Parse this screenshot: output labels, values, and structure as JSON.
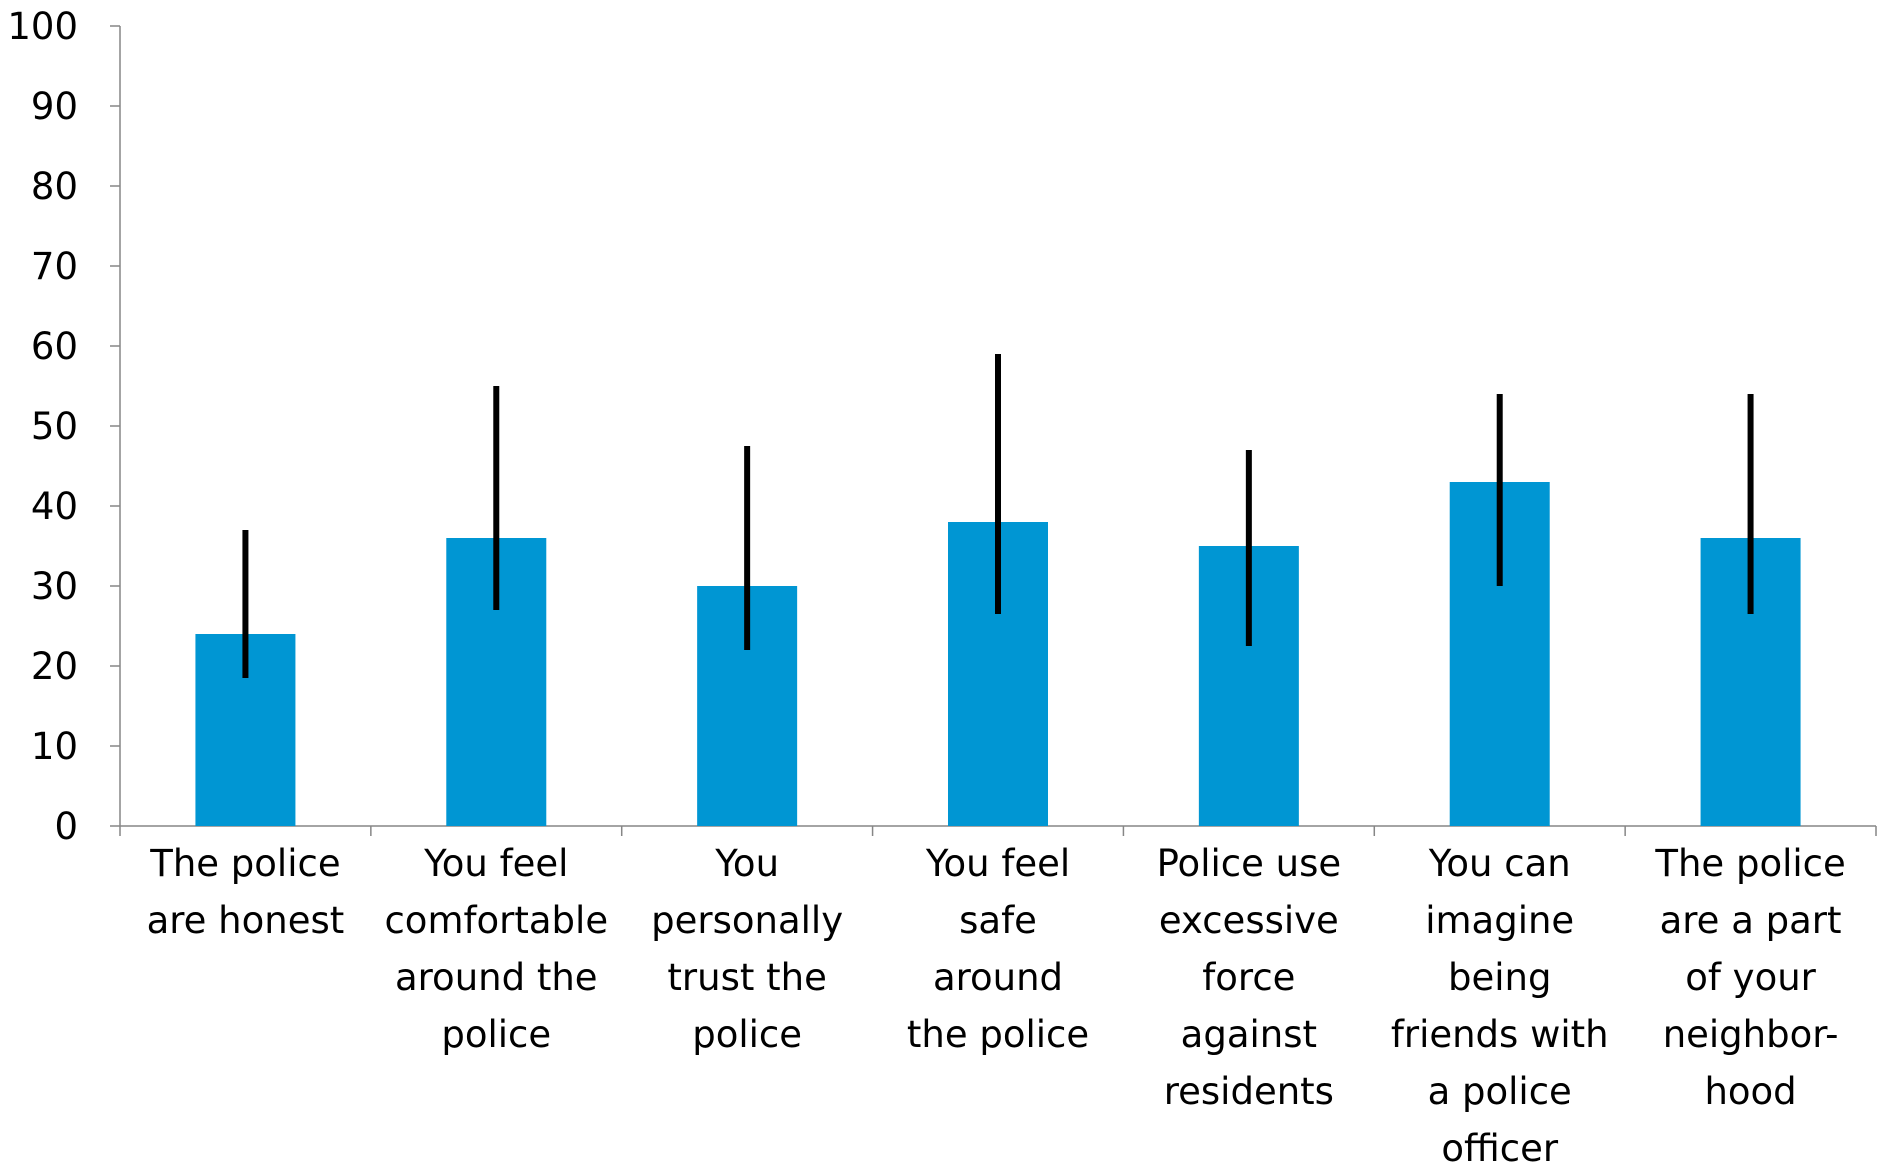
{
  "chart_data": {
    "type": "bar",
    "categories": [
      "The police\nare honest",
      "You feel\ncomfortable\naround the\npolice",
      "You\npersonally\ntrust the\npolice",
      "You feel\nsafe\naround\nthe police",
      "Police use\nexcessive\nforce\nagainst\nresidents",
      "You can\nimagine\nbeing\nfriends with\na police\nofficer",
      "The police\nare a part\nof your\nneighbor-\nhood"
    ],
    "values": [
      24,
      36,
      30,
      38,
      35,
      43,
      36
    ],
    "error_lower": [
      18.5,
      27,
      22,
      26.5,
      22.5,
      30,
      26.5
    ],
    "error_upper": [
      37,
      55,
      47.5,
      59,
      47,
      54,
      54
    ],
    "color": "#0096d3",
    "error_color": "#000000",
    "ylim": [
      0,
      100
    ],
    "yticks": [
      0,
      10,
      20,
      30,
      40,
      50,
      60,
      70,
      80,
      90,
      100
    ],
    "grid": false
  }
}
